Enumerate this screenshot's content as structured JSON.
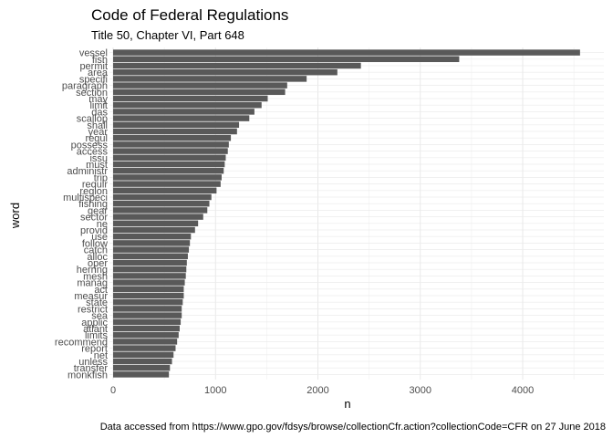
{
  "chart_data": {
    "type": "bar",
    "orientation": "horizontal",
    "title": "Code of Federal Regulations",
    "subtitle": "Title 50, Chapter VI, Part 648",
    "xlabel": "n",
    "ylabel": "word",
    "caption": "Data accessed from https://www.gpo.gov/fdsys/browse/collectionCfr.action?collectionCode=CFR on 27 June 2018",
    "xlim": [
      0,
      4600
    ],
    "xticks": [
      0,
      1000,
      2000,
      3000,
      4000
    ],
    "grid": true,
    "bar_color": "#595959",
    "categories": [
      "vessel",
      "fish",
      "permit",
      "area",
      "specifi",
      "paragraph",
      "section",
      "may",
      "limit",
      "das",
      "scallop",
      "shall",
      "year",
      "regul",
      "possess",
      "access",
      "issu",
      "must",
      "administr",
      "trip",
      "requir",
      "region",
      "multispeci",
      "fishing",
      "gear",
      "sector",
      "ne",
      "provid",
      "use",
      "follow",
      "catch",
      "alloc",
      "oper",
      "herring",
      "mesh",
      "manag",
      "act",
      "measur",
      "state",
      "restrict",
      "sea",
      "applic",
      "atlant",
      "limits",
      "recommend",
      "report",
      "net",
      "unless",
      "transfer",
      "monkfish"
    ],
    "values": [
      4560,
      3380,
      2420,
      2190,
      1890,
      1700,
      1680,
      1510,
      1450,
      1380,
      1330,
      1230,
      1210,
      1150,
      1130,
      1120,
      1100,
      1090,
      1080,
      1060,
      1050,
      1010,
      960,
      940,
      920,
      880,
      830,
      800,
      760,
      750,
      740,
      730,
      720,
      715,
      710,
      700,
      690,
      690,
      680,
      670,
      670,
      660,
      650,
      640,
      625,
      610,
      590,
      575,
      555,
      545
    ]
  }
}
